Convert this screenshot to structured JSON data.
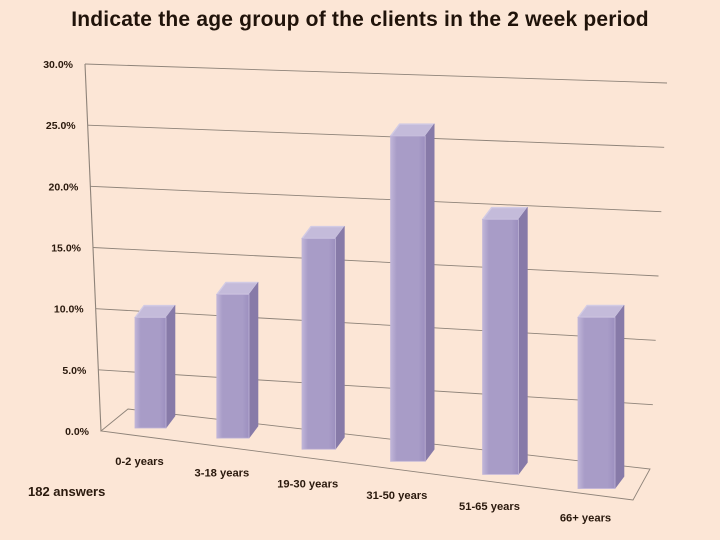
{
  "chart_data": {
    "type": "bar",
    "projection": "3d-perspective",
    "title": "Indicate the age group of the clients in the 2 week period",
    "footnote": "182 answers",
    "categories": [
      "0-2 years",
      "3-18 years",
      "19-30 years",
      "31-50 years",
      "51-65 years",
      "66+ years"
    ],
    "values": [
      9.9,
      12.2,
      17.0,
      25.0,
      18.7,
      12.0
    ],
    "unit": "percent",
    "ylim": [
      0,
      30
    ],
    "ytick_step": 5,
    "ytick_labels": [
      "30.0%",
      "25.0%",
      "20.0%",
      "15.0%",
      "10.0%",
      "5.0%",
      "0.0%"
    ],
    "grid": true,
    "legend": false,
    "colors": {
      "background": "#fce6d6",
      "bar_front": "#a89cc7",
      "bar_front_highlight": "#c0b5d8",
      "bar_front_shade": "#9c8fbf",
      "bar_side": "#877aa8",
      "bar_top": "#c4bbda",
      "bar_edge": "#d2cbe4",
      "gridline": "#8e8379",
      "text": "#2a190d"
    }
  }
}
